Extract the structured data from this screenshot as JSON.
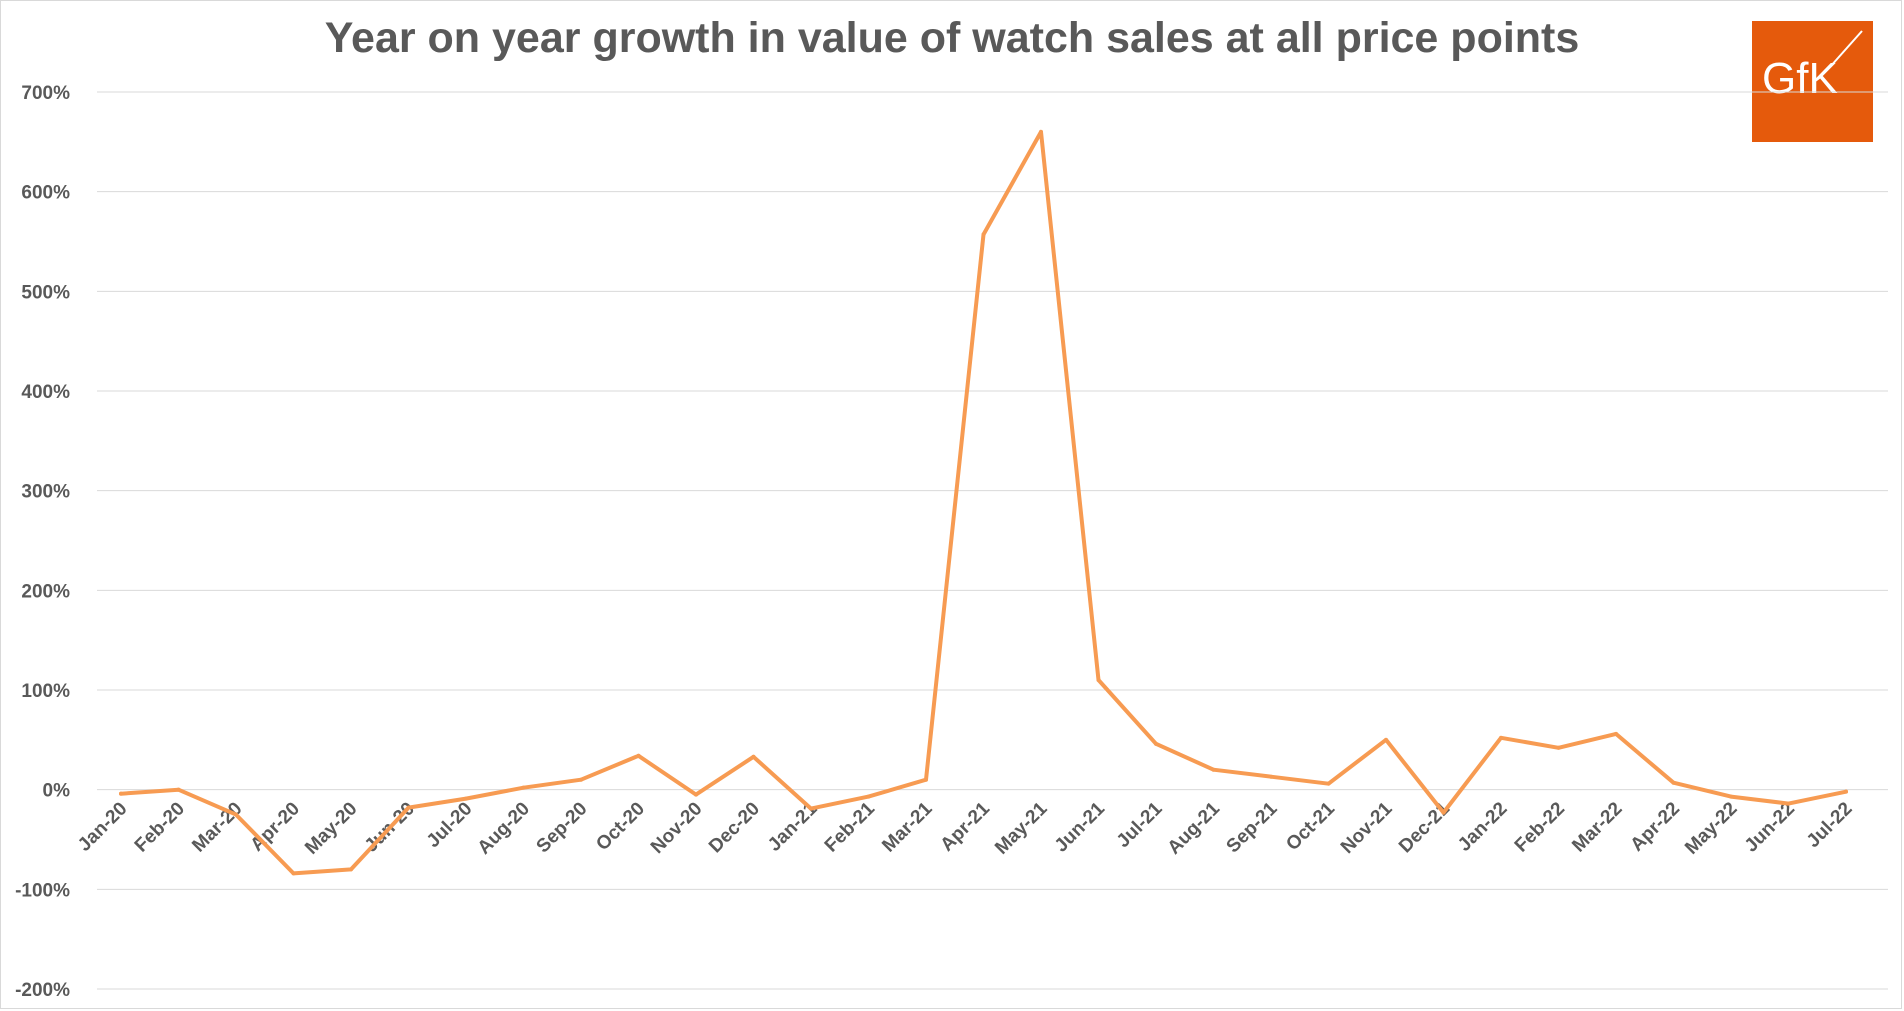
{
  "chart_data": {
    "type": "line",
    "title": "Year on year growth in value of watch sales at all price points",
    "categories": [
      "Jan-20",
      "Feb-20",
      "Mar-20",
      "Apr-20",
      "May-20",
      "Jun-20",
      "Jul-20",
      "Aug-20",
      "Sep-20",
      "Oct-20",
      "Nov-20",
      "Dec-20",
      "Jan-21",
      "Feb-21",
      "Mar-21",
      "Apr-21",
      "May-21",
      "Jun-21",
      "Jul-21",
      "Aug-21",
      "Sep-21",
      "Oct-21",
      "Nov-21",
      "Dec-21",
      "Jan-22",
      "Feb-22",
      "Mar-22",
      "Apr-22",
      "May-22",
      "Jun-22",
      "Jul-22"
    ],
    "series": [
      {
        "values": [
          -4,
          0,
          -25,
          -84,
          -80,
          -18,
          -9,
          2,
          10,
          34,
          -5,
          33,
          -19,
          -7,
          10,
          557,
          660,
          110,
          46,
          20,
          13,
          6,
          50,
          -23,
          52,
          42,
          56,
          7,
          -7,
          -14,
          -2
        ],
        "color": "#f79b52"
      }
    ],
    "ylim": [
      -200,
      700
    ],
    "yticks": [
      -200,
      -100,
      0,
      100,
      200,
      300,
      400,
      500,
      600,
      700
    ],
    "ytick_labels": [
      "-200%",
      "-100%",
      "0%",
      "100%",
      "200%",
      "300%",
      "400%",
      "500%",
      "600%",
      "700%"
    ],
    "grid": true,
    "legend": "none"
  },
  "logo": {
    "text": "GfK",
    "color": "#e55a0c"
  }
}
